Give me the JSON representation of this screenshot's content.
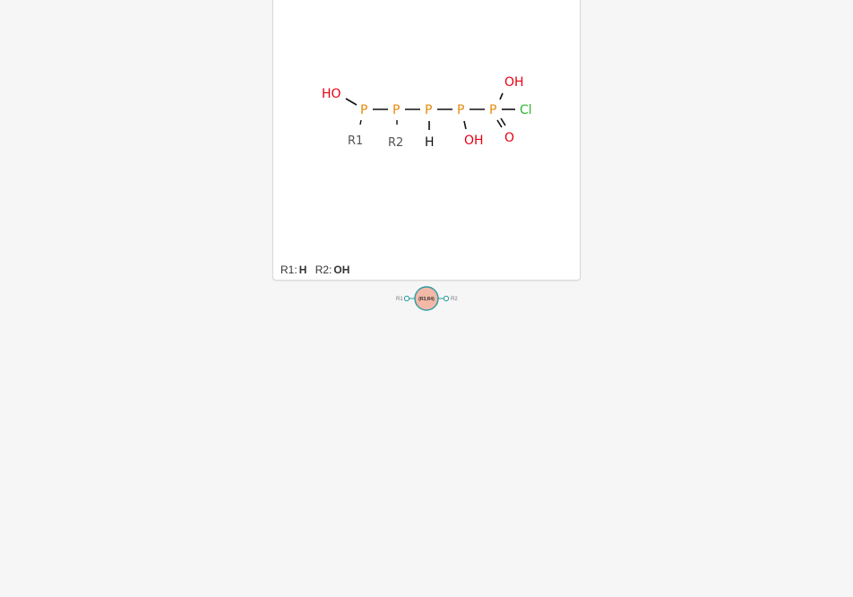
{
  "structure": {
    "atoms": {
      "p1": "P",
      "p2": "P",
      "p3": "P",
      "p4": "P",
      "p5": "P",
      "ho_left": "HO",
      "h_p3": "H",
      "oh_p4": "OH",
      "oh_p5": "OH",
      "cl": "Cl",
      "o_double": "O"
    },
    "rgroups": {
      "r1": "R1",
      "r2": "R2"
    },
    "colors": {
      "phosphorus": "#e8890c",
      "oxygen": "#e60012",
      "chlorine": "#2db82d",
      "hydrogen": "#111111",
      "bond": "#111111",
      "rgroup": "#555555"
    }
  },
  "legend": {
    "r1_label": "R1:",
    "r1_value": "H",
    "r2_label": "R2:",
    "r2_value": "OH"
  },
  "core_badge": {
    "label": "(R3,R4)",
    "left_label": "R1",
    "right_label": "R2",
    "fill_color": "#f2b8a8",
    "ring_color": "#2a9aa0"
  }
}
